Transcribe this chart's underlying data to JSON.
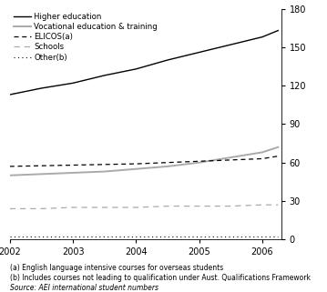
{
  "years": [
    2002,
    2002.5,
    2003,
    2003.5,
    2004,
    2004.5,
    2005,
    2005.5,
    2006,
    2006.25
  ],
  "higher_education": [
    113,
    118,
    122,
    128,
    133,
    140,
    146,
    152,
    158,
    163
  ],
  "vocational": [
    50,
    51,
    52,
    53,
    55,
    57,
    60,
    64,
    68,
    72
  ],
  "elicos": [
    57,
    57.5,
    58,
    58.5,
    59,
    60,
    61,
    62,
    63,
    65
  ],
  "schools": [
    24,
    24,
    25,
    25,
    25,
    26,
    26,
    26,
    27,
    27
  ],
  "other": [
    2,
    2,
    2,
    2,
    2,
    2,
    2,
    2,
    2,
    2
  ],
  "xlim": [
    2002,
    2006.3
  ],
  "ylim": [
    0,
    180
  ],
  "yticks": [
    0,
    30,
    60,
    90,
    120,
    150,
    180
  ],
  "xticks": [
    2002,
    2003,
    2004,
    2005,
    2006
  ],
  "footnote1": "(a) English language intensive courses for overseas students",
  "footnote2": "(b) Includes courses not leading to qualification under Aust. Qualifications Framework",
  "source": "Source: AEI international student numbers",
  "legend_entries": [
    "Higher education",
    "Vocational education & training",
    "ELICOS(a)",
    "Schools",
    "Other(b)"
  ],
  "line_colors": {
    "higher_education": "#000000",
    "vocational": "#aaaaaa",
    "elicos": "#000000",
    "schools": "#aaaaaa",
    "other": "#000000"
  }
}
